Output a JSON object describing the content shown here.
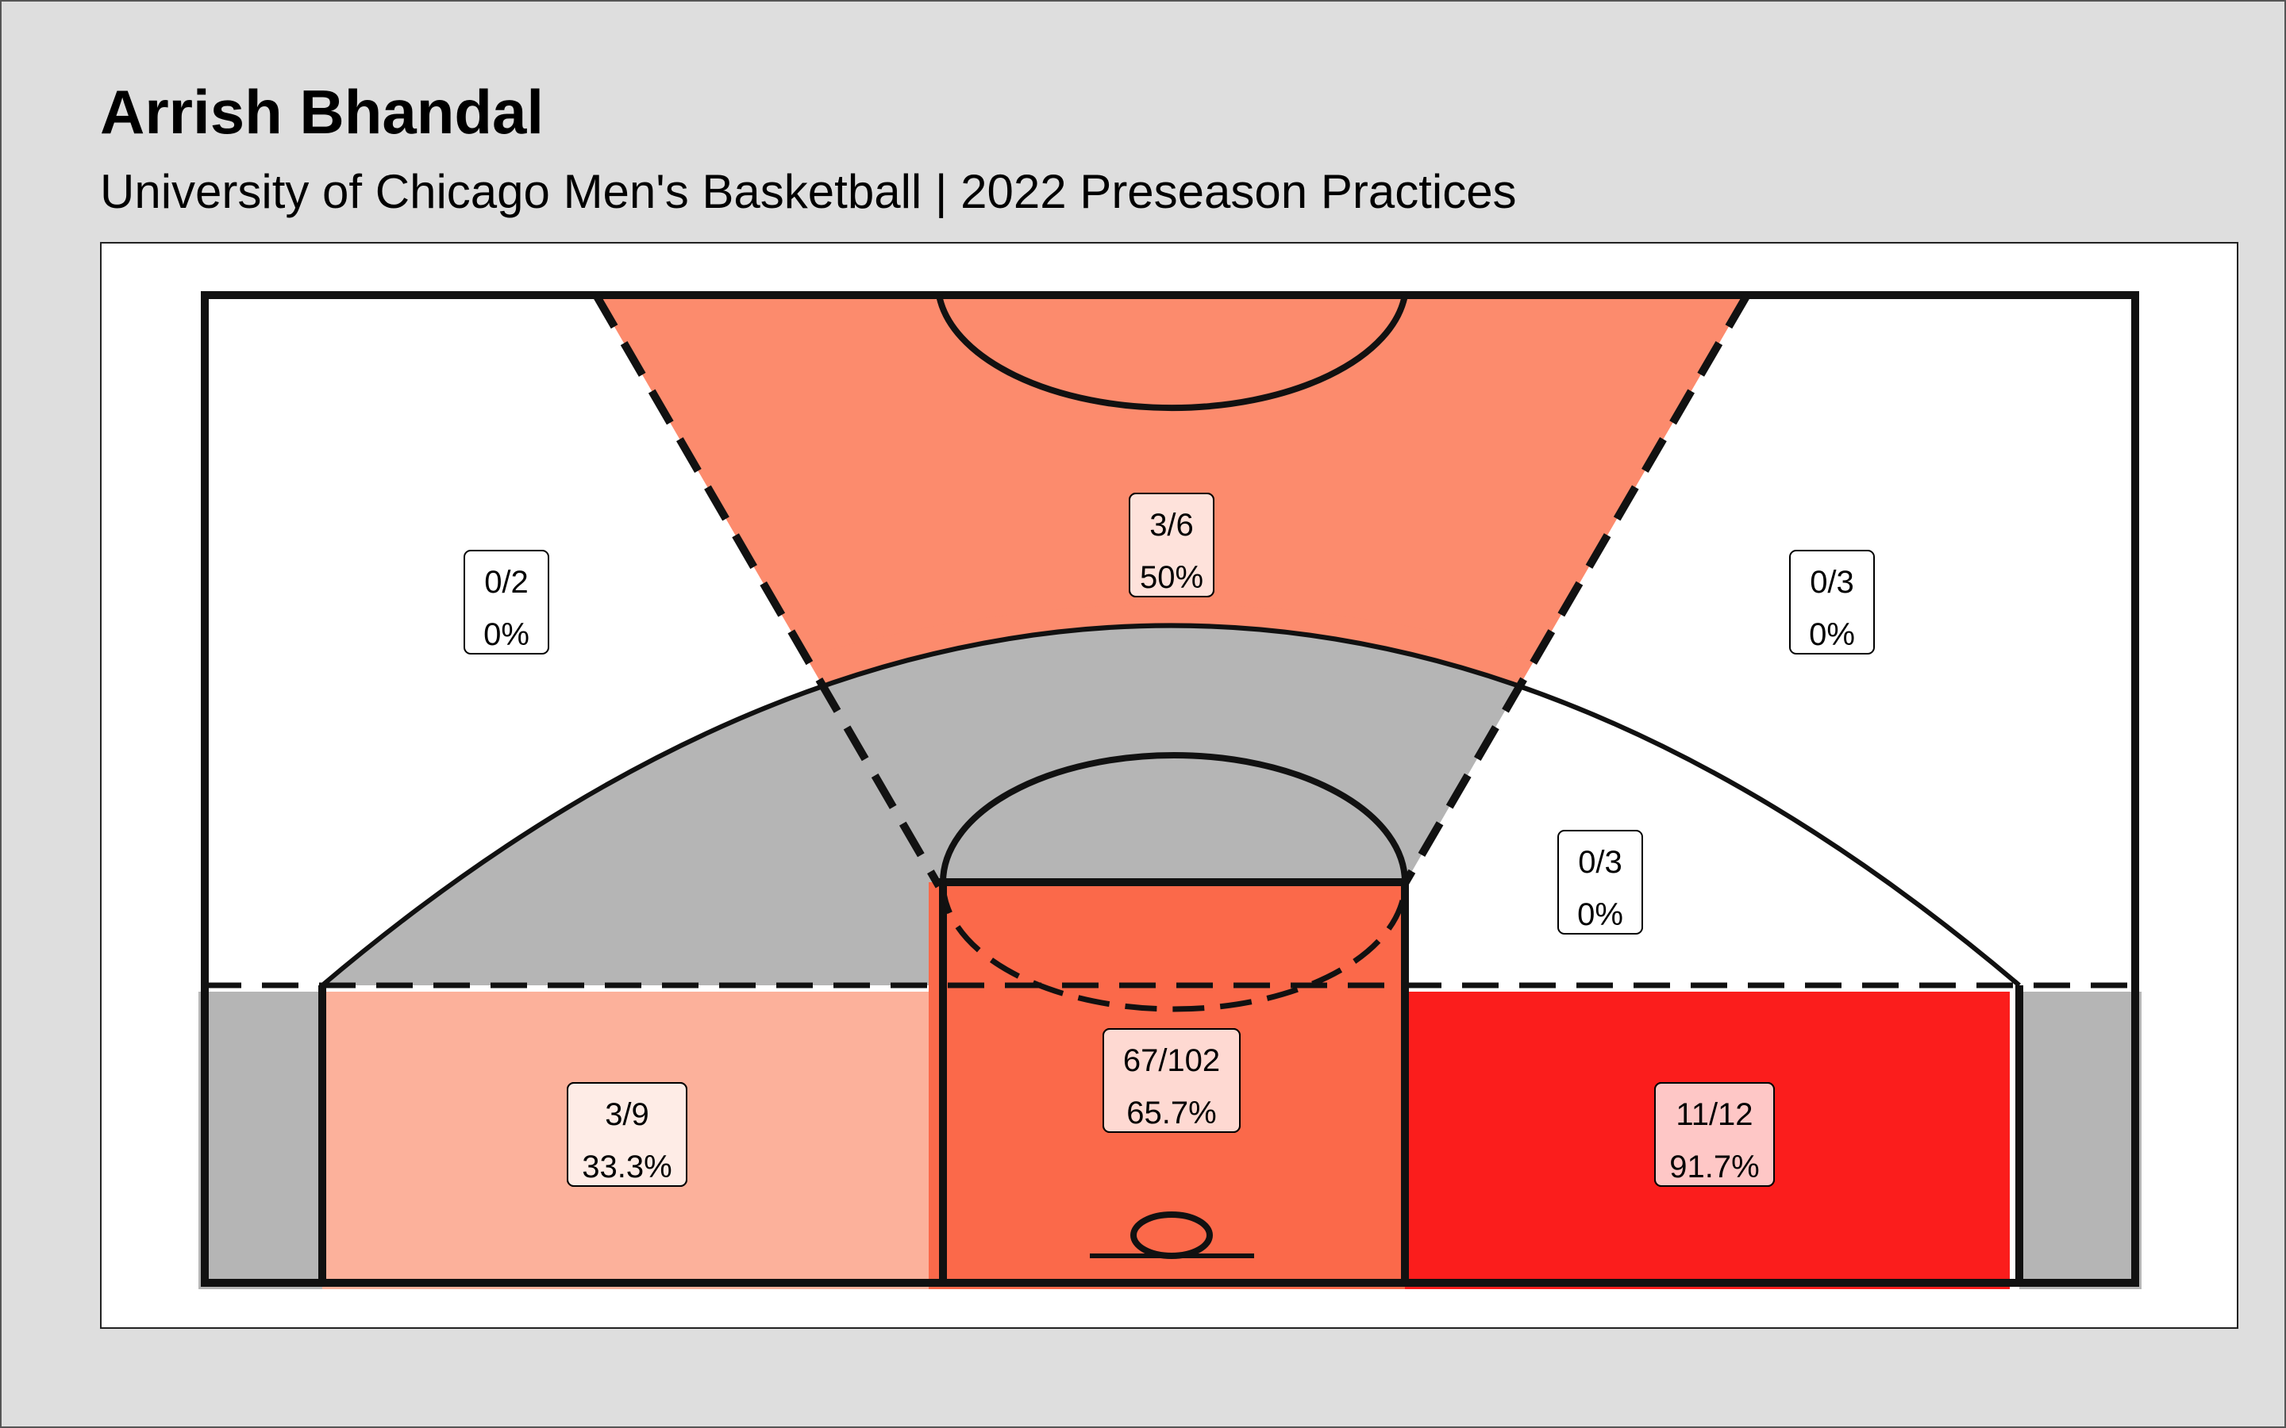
{
  "header": {
    "title": "Arrish Bhandal",
    "subtitle": "University of Chicago Men's Basketball | 2022 Preseason Practices"
  },
  "colors": {
    "background": "#dedede",
    "panel": "#ffffff",
    "no_attempts": "#b5b5b5",
    "court_lines": "#111111"
  },
  "chart_data": {
    "type": "heatmap",
    "description_units": "made/attempted and field-goal percentage per court zone",
    "zones": [
      {
        "id": "left-wing-three",
        "label_made": "0/2",
        "label_pct": "0%",
        "made": 0,
        "attempts": 2,
        "pct": 0,
        "color": "#ffffff"
      },
      {
        "id": "top-of-key-three",
        "label_made": "3/6",
        "label_pct": "50%",
        "made": 3,
        "attempts": 6,
        "pct": 50,
        "color": "#fc8b6d"
      },
      {
        "id": "right-wing-three",
        "label_made": "0/3",
        "label_pct": "0%",
        "made": 0,
        "attempts": 3,
        "pct": 0,
        "color": "#ffffff"
      },
      {
        "id": "center-mid-range",
        "label_made": "",
        "label_pct": "",
        "made": 0,
        "attempts": 0,
        "pct": null,
        "color": "#b5b5b5"
      },
      {
        "id": "right-mid-range",
        "label_made": "0/3",
        "label_pct": "0%",
        "made": 0,
        "attempts": 3,
        "pct": 0,
        "color": "#ffffff"
      },
      {
        "id": "left-baseline-mid-range",
        "label_made": "3/9",
        "label_pct": "33.3%",
        "made": 3,
        "attempts": 9,
        "pct": 33.3,
        "color": "#fcb19b"
      },
      {
        "id": "paint",
        "label_made": "67/102",
        "label_pct": "65.7%",
        "made": 67,
        "attempts": 102,
        "pct": 65.7,
        "color": "#fb694a"
      },
      {
        "id": "right-baseline-mid-range",
        "label_made": "11/12",
        "label_pct": "91.7%",
        "made": 11,
        "attempts": 12,
        "pct": 91.7,
        "color": "#fb1d1c"
      },
      {
        "id": "left-corner-three",
        "label_made": "",
        "label_pct": "",
        "made": 0,
        "attempts": 0,
        "pct": null,
        "color": "#b5b5b5"
      },
      {
        "id": "right-corner-three",
        "label_made": "",
        "label_pct": "",
        "made": 0,
        "attempts": 0,
        "pct": null,
        "color": "#b5b5b5"
      }
    ]
  }
}
